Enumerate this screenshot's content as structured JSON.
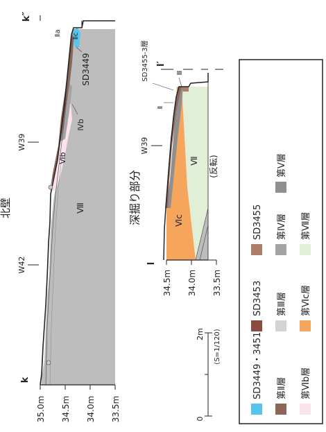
{
  "section_north": {
    "title": "北壁",
    "label_start": "k",
    "label_end": "k″",
    "elevation_ticks": [
      "35.0m",
      "34.5m",
      "34.0m",
      "33.5m"
    ],
    "grid_marks": [
      "W42",
      "W39"
    ],
    "layer_labels": [
      "Ⅱa",
      "Ⅱc",
      "SD3449",
      "Ⅳb",
      "Ⅵb",
      "Ⅷ"
    ]
  },
  "section_deep": {
    "title": "深掘り部分",
    "label_start": "l",
    "label_end": "l′",
    "elevation_ticks": [
      "34.5m",
      "34.0m",
      "33.5m"
    ],
    "grid_marks": [
      "W39"
    ],
    "layer_labels": [
      "SD3455-3層",
      "Ⅲ",
      "Ⅱ",
      "Ⅶ",
      "Ⅵc"
    ],
    "note": "(反転)"
  },
  "scale": {
    "zero": "0",
    "max": "2m",
    "ratio": "(S=1/120)"
  },
  "legend": {
    "items": [
      {
        "label": "SD3449・3451",
        "color": "#56c5ee"
      },
      {
        "label": "SD3453",
        "color": "#8b4b40"
      },
      {
        "label": "SD3455",
        "color": "#ac7d69"
      },
      {
        "label": "第Ⅱ層",
        "color": "#8d665a"
      },
      {
        "label": "第Ⅲ層",
        "color": "#d4d4d4"
      },
      {
        "label": "第Ⅳ層",
        "color": "#a3a3a3"
      },
      {
        "label": "第Ⅴ層",
        "color": "#8f8f8f"
      },
      {
        "label": "第Ⅵb層",
        "color": "#fbe3ee"
      },
      {
        "label": "第Ⅵc層",
        "color": "#f5a55c"
      },
      {
        "label": "第Ⅶ層",
        "color": "#e0efd6"
      }
    ]
  }
}
